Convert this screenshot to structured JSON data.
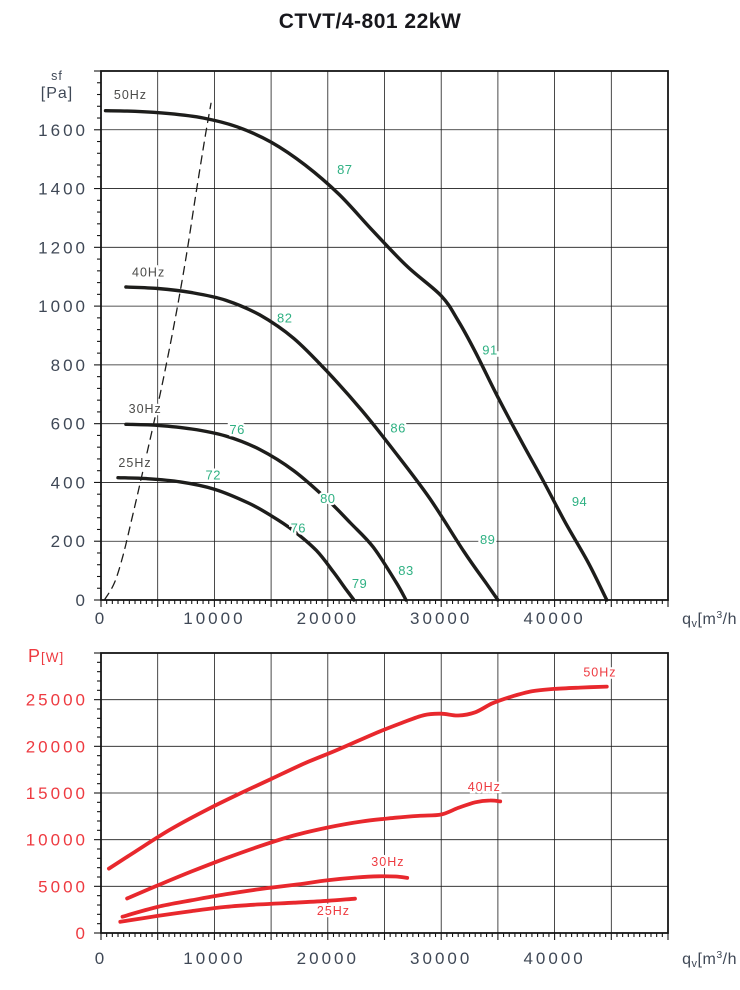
{
  "page": {
    "title": "CTVT/4-801 22kW"
  },
  "colors": {
    "background": "#ffffff",
    "grid": "#1c1c1c",
    "frame": "#161616",
    "axis_text": "#3f4856",
    "red": "#e8282d",
    "red_text": "#ee3a40",
    "curve_black": "#1d1d1b",
    "efficiency_green": "#2fb183",
    "hz_label_gray": "#4b4b49",
    "title_text": "#17171c"
  },
  "chart_data": [
    {
      "name": "static-pressure-vs-flow",
      "type": "line",
      "ylabel_text": "sf [Pa]",
      "xlabel_text": "qv[m3/h",
      "xlim": [
        0,
        50000
      ],
      "ylim": [
        0,
        1800
      ],
      "x_grid_step": 5000,
      "y_grid_step": 200,
      "x_tick_minor": 500,
      "y_tick_minor": 40,
      "x_tick_labels": [
        0,
        10000,
        20000,
        30000,
        40000
      ],
      "y_tick_labels": [
        0,
        200,
        400,
        600,
        800,
        1000,
        1200,
        1400,
        1600
      ],
      "x_tick_color": "#3f4856",
      "y_tick_color": "#3f4856",
      "stroke_width": 3.4,
      "ylabel_lines": [
        {
          "t": "sf",
          "size": 12.5,
          "line": 0
        },
        {
          "t": "[Pa]",
          "size": 16,
          "line": 1
        }
      ],
      "xlabel_parts": [
        {
          "t": "q",
          "size": 16,
          "dy": 0
        },
        {
          "t": "v",
          "size": 11,
          "dy": 3
        },
        {
          "t": "[m",
          "size": 16,
          "dy": -3
        },
        {
          "t": "3",
          "size": 10.5,
          "dy": -6
        },
        {
          "t": "/h",
          "size": 16,
          "dy": 6
        }
      ],
      "series_color": "#1d1d1b",
      "series_label_color": "#4b4b49",
      "point_label_color": "#2fb183",
      "series": [
        {
          "name": "50Hz",
          "style": "solid",
          "points": [
            [
              400,
              1665
            ],
            [
              3000,
              1663
            ],
            [
              6000,
              1655
            ],
            [
              9000,
              1640
            ],
            [
              12000,
              1610
            ],
            [
              15000,
              1558
            ],
            [
              18000,
              1480
            ],
            [
              21000,
              1380
            ],
            [
              24000,
              1255
            ],
            [
              27000,
              1135
            ],
            [
              30000,
              1035
            ],
            [
              31500,
              950
            ],
            [
              33000,
              845
            ],
            [
              35000,
              690
            ],
            [
              37000,
              545
            ],
            [
              39000,
              405
            ],
            [
              41000,
              260
            ],
            [
              43000,
              125
            ],
            [
              44600,
              0
            ]
          ]
        },
        {
          "name": "40Hz",
          "style": "solid",
          "points": [
            [
              2200,
              1065
            ],
            [
              5000,
              1060
            ],
            [
              8000,
              1046
            ],
            [
              11000,
              1020
            ],
            [
              14000,
              970
            ],
            [
              17000,
              890
            ],
            [
              20000,
              775
            ],
            [
              23000,
              645
            ],
            [
              26000,
              500
            ],
            [
              29000,
              345
            ],
            [
              32000,
              165
            ],
            [
              34000,
              55
            ],
            [
              35000,
              0
            ]
          ]
        },
        {
          "name": "30Hz",
          "style": "solid",
          "points": [
            [
              2200,
              598
            ],
            [
              5000,
              594
            ],
            [
              8000,
              582
            ],
            [
              11000,
              558
            ],
            [
              14000,
              512
            ],
            [
              17000,
              440
            ],
            [
              20000,
              340
            ],
            [
              22000,
              262
            ],
            [
              24000,
              180
            ],
            [
              26000,
              62
            ],
            [
              26900,
              0
            ]
          ]
        },
        {
          "name": "25Hz",
          "style": "solid",
          "points": [
            [
              1500,
              416
            ],
            [
              4000,
              413
            ],
            [
              7000,
              402
            ],
            [
              10000,
              377
            ],
            [
              13000,
              330
            ],
            [
              15000,
              287
            ],
            [
              17000,
              235
            ],
            [
              19000,
              168
            ],
            [
              20500,
              95
            ],
            [
              21500,
              42
            ],
            [
              22300,
              0
            ]
          ]
        },
        {
          "name": "system-curve",
          "style": "dashed",
          "points": [
            [
              300,
              0
            ],
            [
              1200,
              60
            ],
            [
              2000,
              160
            ],
            [
              2800,
              290
            ],
            [
              3700,
              440
            ],
            [
              4700,
              610
            ],
            [
              5700,
              790
            ],
            [
              6700,
              990
            ],
            [
              7600,
              1190
            ],
            [
              8400,
              1390
            ],
            [
              9200,
              1580
            ],
            [
              9700,
              1690
            ]
          ]
        }
      ],
      "series_labels": [
        {
          "text": "50Hz",
          "x": 2600,
          "y": 1705
        },
        {
          "text": "40Hz",
          "x": 4200,
          "y": 1100
        },
        {
          "text": "30Hz",
          "x": 3900,
          "y": 637
        },
        {
          "text": "25Hz",
          "x": 3000,
          "y": 452
        }
      ],
      "point_labels": [
        {
          "text": "87",
          "x": 21500,
          "y": 1450
        },
        {
          "text": "82",
          "x": 16200,
          "y": 945
        },
        {
          "text": "91",
          "x": 34300,
          "y": 835
        },
        {
          "text": "86",
          "x": 26200,
          "y": 570
        },
        {
          "text": "76",
          "x": 12000,
          "y": 565
        },
        {
          "text": "72",
          "x": 9900,
          "y": 410
        },
        {
          "text": "80",
          "x": 20000,
          "y": 330
        },
        {
          "text": "76",
          "x": 17400,
          "y": 230
        },
        {
          "text": "89",
          "x": 34100,
          "y": 190
        },
        {
          "text": "94",
          "x": 42200,
          "y": 320
        },
        {
          "text": "83",
          "x": 26900,
          "y": 85
        },
        {
          "text": "79",
          "x": 22800,
          "y": 40
        }
      ]
    },
    {
      "name": "power-vs-flow",
      "type": "line",
      "ylabel_text": "P [W]",
      "xlabel_text": "qv[m3/h",
      "xlim": [
        0,
        50000
      ],
      "ylim": [
        0,
        30000
      ],
      "x_grid_step": 5000,
      "y_grid_step": 5000,
      "x_tick_minor": 500,
      "y_tick_minor": 1000,
      "x_tick_labels": [
        0,
        10000,
        20000,
        30000,
        40000
      ],
      "y_tick_labels": [
        0,
        5000,
        10000,
        15000,
        20000,
        25000
      ],
      "x_tick_color": "#3f4856",
      "y_tick_color": "#ee3a40",
      "stroke_width": 3.8,
      "ylabel_lines": [
        {
          "t": "P",
          "size": 18,
          "line": 0
        },
        {
          "t": "[W]",
          "size": 13.5,
          "line": 0
        }
      ],
      "xlabel_parts": [
        {
          "t": "q",
          "size": 16,
          "dy": 0
        },
        {
          "t": "v",
          "size": 11,
          "dy": 3
        },
        {
          "t": "[m",
          "size": 16,
          "dy": -3
        },
        {
          "t": "3",
          "size": 10.5,
          "dy": -6
        },
        {
          "t": "/h",
          "size": 16,
          "dy": 6
        }
      ],
      "series_color": "#e8282d",
      "series_label_color": "#ee3a40",
      "point_label_color": "#ee3a40",
      "series": [
        {
          "name": "50Hz",
          "style": "solid",
          "points": [
            [
              700,
              6900
            ],
            [
              3000,
              8700
            ],
            [
              6000,
              11000
            ],
            [
              9000,
              13000
            ],
            [
              12000,
              14800
            ],
            [
              15000,
              16500
            ],
            [
              18000,
              18200
            ],
            [
              21000,
              19700
            ],
            [
              24000,
              21300
            ],
            [
              26500,
              22500
            ],
            [
              28500,
              23350
            ],
            [
              30000,
              23500
            ],
            [
              31500,
              23300
            ],
            [
              33000,
              23650
            ],
            [
              34500,
              24600
            ],
            [
              36000,
              25250
            ],
            [
              38000,
              25900
            ],
            [
              40000,
              26150
            ],
            [
              42500,
              26300
            ],
            [
              44600,
              26400
            ]
          ]
        },
        {
          "name": "40Hz",
          "style": "solid",
          "points": [
            [
              2300,
              3700
            ],
            [
              5000,
              5100
            ],
            [
              8000,
              6600
            ],
            [
              11000,
              8000
            ],
            [
              14000,
              9300
            ],
            [
              17000,
              10450
            ],
            [
              20000,
              11300
            ],
            [
              23000,
              11950
            ],
            [
              26000,
              12350
            ],
            [
              28000,
              12550
            ],
            [
              30000,
              12700
            ],
            [
              31500,
              13400
            ],
            [
              33000,
              14000
            ],
            [
              34300,
              14200
            ],
            [
              35200,
              14100
            ]
          ]
        },
        {
          "name": "30Hz",
          "style": "solid",
          "points": [
            [
              1900,
              1750
            ],
            [
              5000,
              2800
            ],
            [
              8000,
              3500
            ],
            [
              11000,
              4150
            ],
            [
              14000,
              4700
            ],
            [
              17000,
              5150
            ],
            [
              20000,
              5650
            ],
            [
              22500,
              5950
            ],
            [
              24500,
              6080
            ],
            [
              26000,
              6050
            ],
            [
              27000,
              5900
            ]
          ]
        },
        {
          "name": "25Hz",
          "style": "solid",
          "points": [
            [
              1700,
              1200
            ],
            [
              5000,
              1830
            ],
            [
              8000,
              2350
            ],
            [
              11000,
              2800
            ],
            [
              14000,
              3060
            ],
            [
              17000,
              3250
            ],
            [
              20000,
              3450
            ],
            [
              22400,
              3680
            ]
          ]
        }
      ],
      "series_labels": [
        {
          "text": "50Hz",
          "x": 44000,
          "y": 27500
        },
        {
          "text": "40Hz",
          "x": 33800,
          "y": 15200
        },
        {
          "text": "30Hz",
          "x": 25300,
          "y": 7200
        },
        {
          "text": "25Hz",
          "x": 20500,
          "y": 1940
        }
      ],
      "point_labels": []
    }
  ]
}
